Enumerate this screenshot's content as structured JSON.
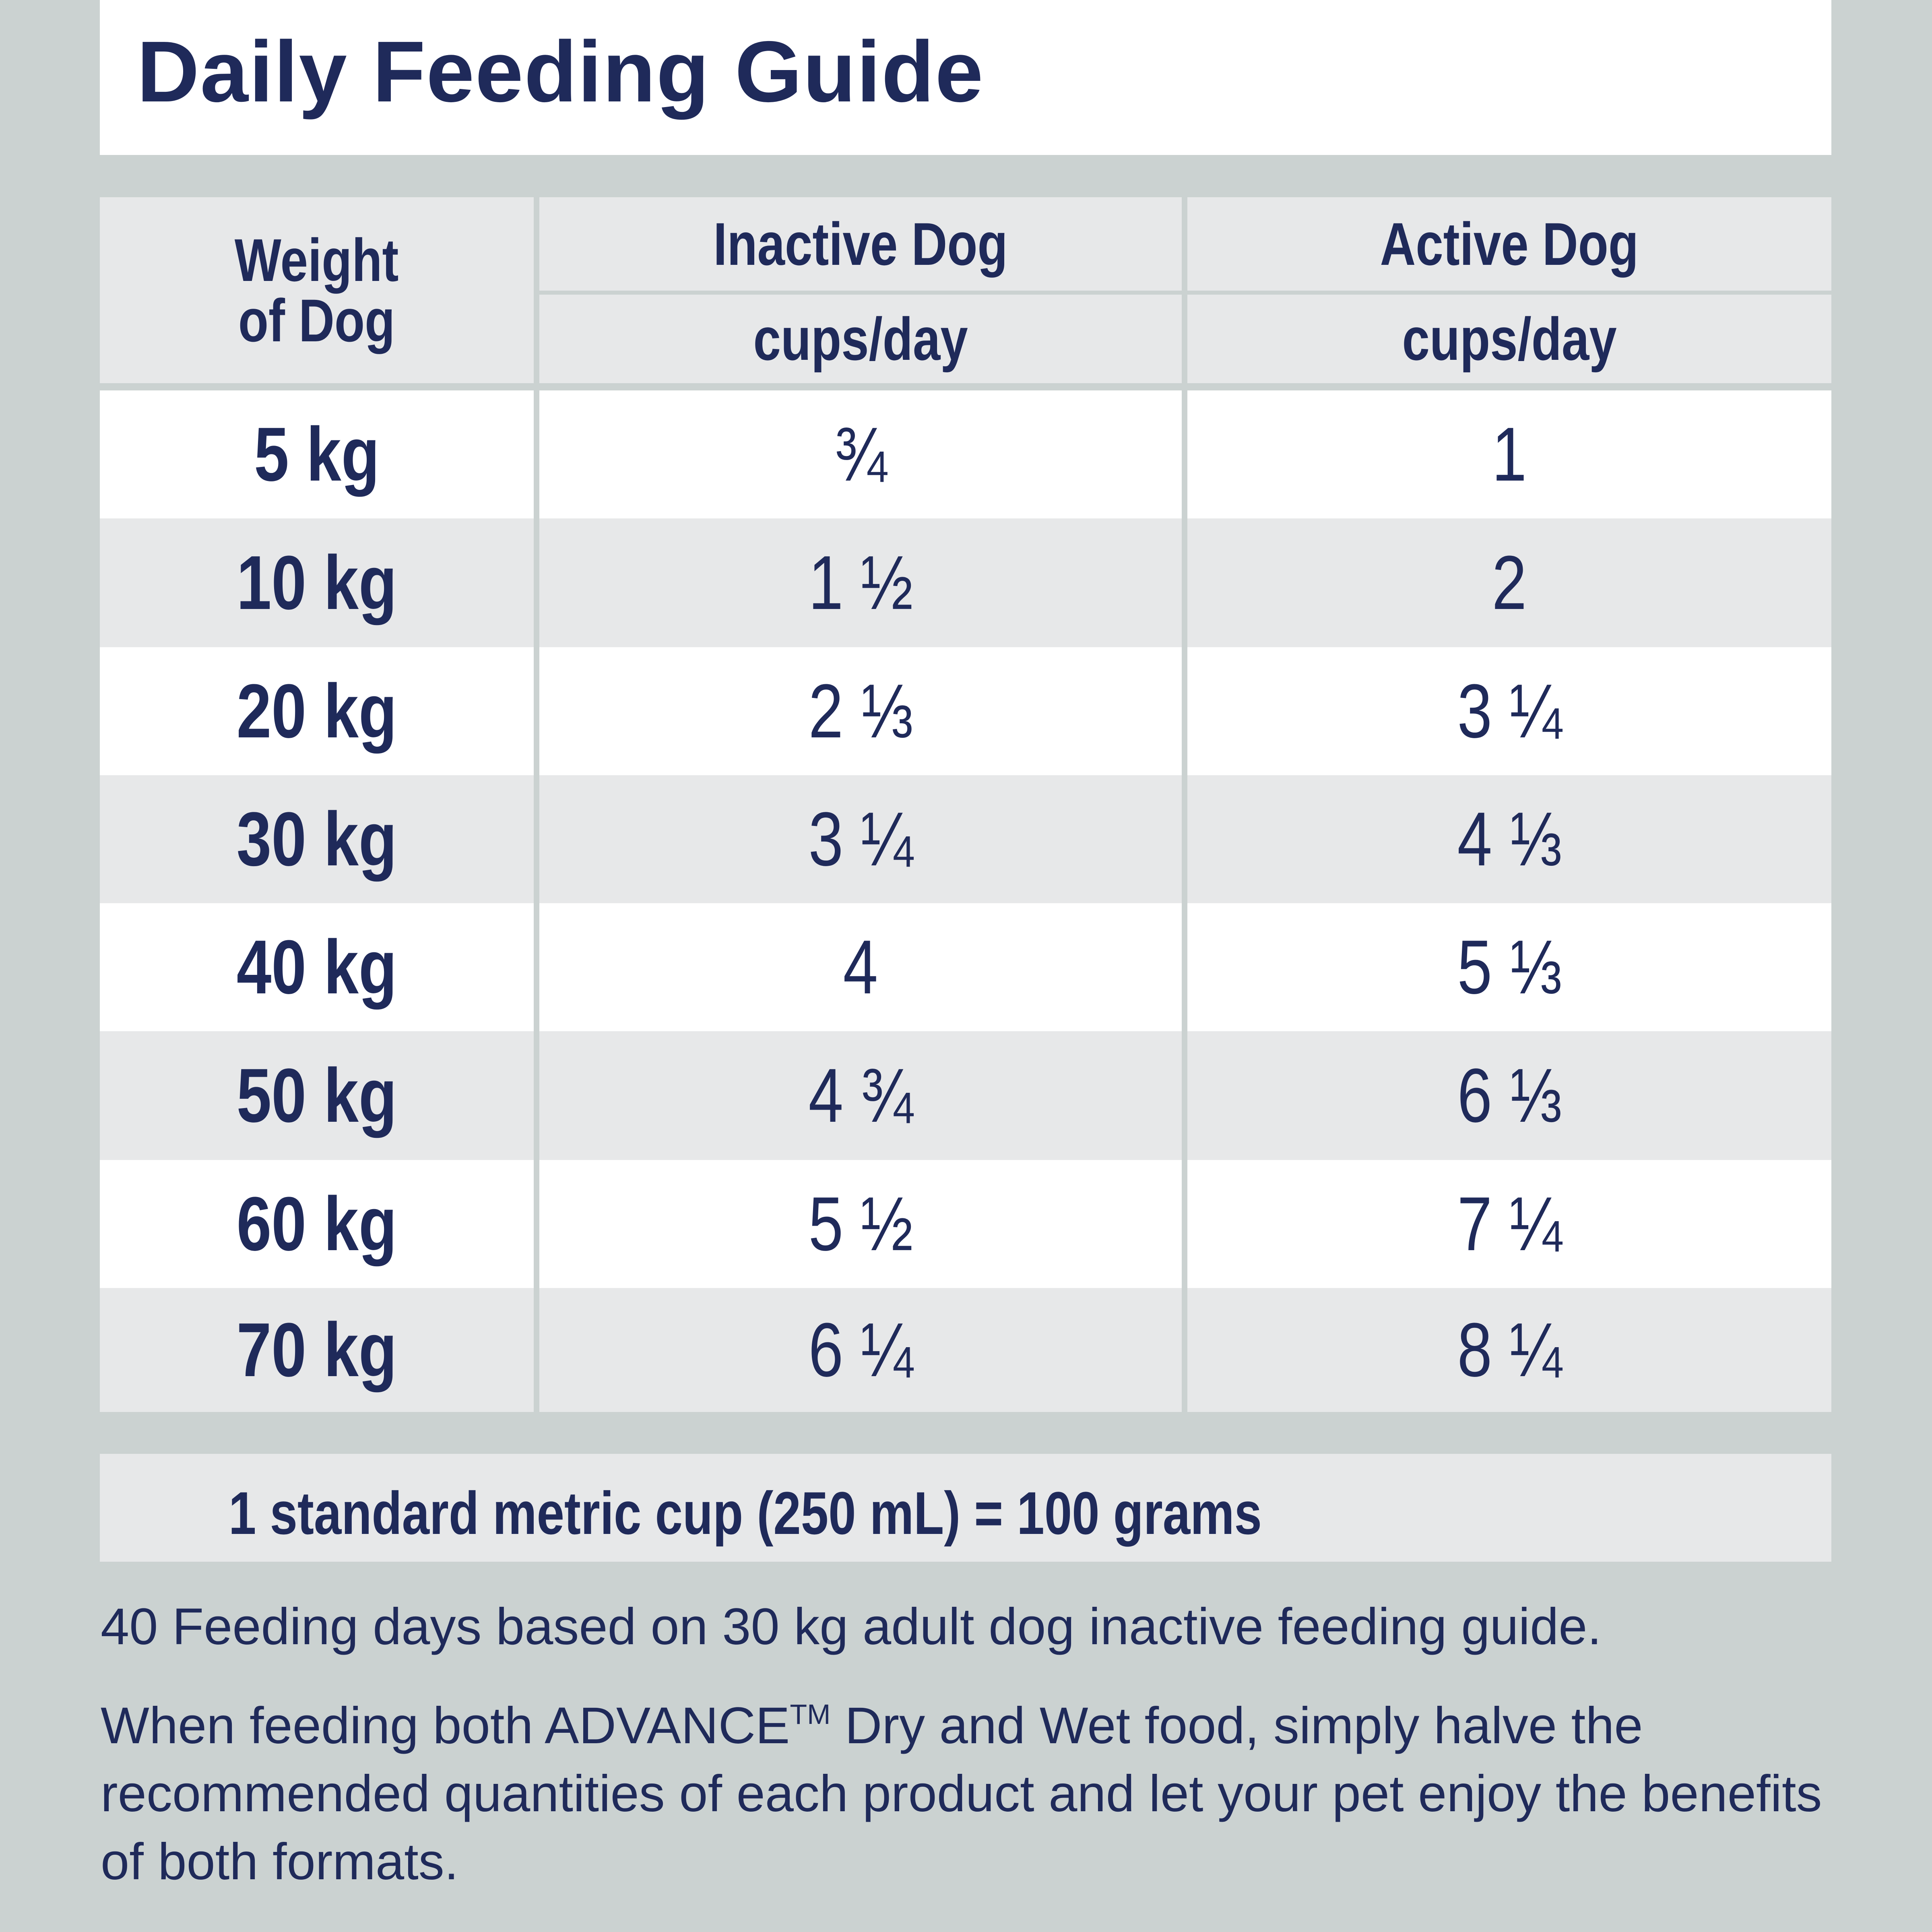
{
  "title": "Daily Feeding Guide",
  "table": {
    "headers": {
      "weight": "Weight\nof Dog",
      "inactive": "Inactive Dog",
      "active": "Active Dog",
      "inactive_unit": "cups/day",
      "active_unit": "cups/day"
    },
    "rows": [
      {
        "weight": "5 kg",
        "inactive": "¾",
        "active": "1"
      },
      {
        "weight": "10 kg",
        "inactive": "1 ½",
        "active": "2"
      },
      {
        "weight": "20 kg",
        "inactive": "2 ⅓",
        "active": "3 ¼"
      },
      {
        "weight": "30 kg",
        "inactive": "3 ¼",
        "active": "4 ⅓"
      },
      {
        "weight": "40 kg",
        "inactive": "4",
        "active": "5 ⅓"
      },
      {
        "weight": "50 kg",
        "inactive": "4 ¾",
        "active": "6 ⅓"
      },
      {
        "weight": "60 kg",
        "inactive": "5 ½",
        "active": "7 ¼"
      },
      {
        "weight": "70 kg",
        "inactive": "6 ¼",
        "active": "8 ¼"
      }
    ]
  },
  "conversion_note": "1 standard metric cup (250 mL) = 100 grams",
  "feeding_days_note": "40 Feeding days based on 30 kg adult dog inactive feeding guide.",
  "mixed_feeding_note": {
    "before_tm": "When feeding both ADVANCE",
    "tm": "TM",
    "after_tm": " Dry and Wet food, simply halve the recommended quantities of each product and let your pet enjoy the benefits of both formats."
  },
  "colors": {
    "text": "#1f2a5a",
    "background": "#cbd2d1",
    "row_light": "#ffffff",
    "row_dark": "#e7e8e9"
  }
}
